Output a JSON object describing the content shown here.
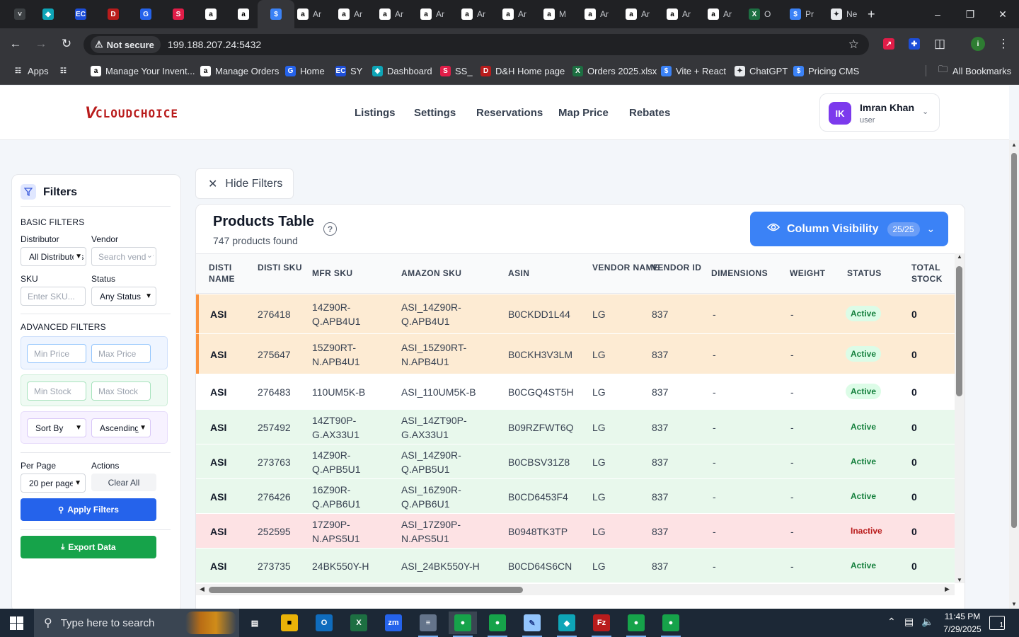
{
  "browser": {
    "tabs": [
      {
        "icon": "chevron-down-icon",
        "title": ""
      },
      {
        "icon": "diamond-icon",
        "title": ""
      },
      {
        "icon": "ec-icon",
        "title": ""
      },
      {
        "icon": "dh-icon",
        "title": ""
      },
      {
        "icon": "google-maps-icon",
        "title": ""
      },
      {
        "icon": "layers-icon",
        "title": ""
      },
      {
        "icon": "amazon-icon",
        "title": ""
      },
      {
        "icon": "amazon-icon",
        "title": ""
      },
      {
        "icon": "dollar-icon",
        "title": ""
      },
      {
        "icon": "amazon-icon",
        "title": "Ar"
      },
      {
        "icon": "amazon-icon",
        "title": "Ar"
      },
      {
        "icon": "amazon-icon",
        "title": "Ar"
      },
      {
        "icon": "amazon-icon",
        "title": "Ar"
      },
      {
        "icon": "amazon-circle-icon",
        "title": "Ar"
      },
      {
        "icon": "amazon-circle-icon",
        "title": "Ar"
      },
      {
        "icon": "amazon-icon",
        "title": "M"
      },
      {
        "icon": "amazon-circle-icon",
        "title": "Ar"
      },
      {
        "icon": "amazon-circle-icon",
        "title": "Ar"
      },
      {
        "icon": "amazon-circle-icon",
        "title": "Ar"
      },
      {
        "icon": "amazon-circle-icon",
        "title": "Ar"
      },
      {
        "icon": "excel-icon",
        "title": "O"
      },
      {
        "icon": "dollar-icon",
        "title": "Pr"
      },
      {
        "icon": "chatgpt-icon",
        "title": "Ne"
      }
    ],
    "new_tab": "+",
    "address": {
      "security_label": "Not secure",
      "url": "199.188.207.24:5432"
    },
    "bookmarks": [
      {
        "icon": "apps-icon",
        "label": "Apps"
      },
      {
        "icon": "grid-icon",
        "label": ""
      },
      {
        "icon": "amazon-icon",
        "label": "Manage Your Invent..."
      },
      {
        "icon": "amazon-icon",
        "label": "Manage Orders"
      },
      {
        "icon": "google-maps-icon",
        "label": "Home"
      },
      {
        "icon": "ec-icon",
        "label": "SY"
      },
      {
        "icon": "diamond-icon",
        "label": "Dashboard"
      },
      {
        "icon": "layers-icon",
        "label": "SS_"
      },
      {
        "icon": "dh-icon",
        "label": "D&H Home page"
      },
      {
        "icon": "excel-icon",
        "label": "Orders 2025.xlsx"
      },
      {
        "icon": "dollar-icon",
        "label": "Vite + React"
      },
      {
        "icon": "chatgpt-icon",
        "label": "ChatGPT"
      },
      {
        "icon": "dollar-icon",
        "label": "Pricing CMS"
      }
    ],
    "all_bookmarks": "All Bookmarks"
  },
  "app": {
    "logo": {
      "mark": "V",
      "text": "CLOUDCHOICE"
    },
    "nav": [
      "Listings",
      "Settings",
      "Reservations",
      "Map Price",
      "Rebates"
    ],
    "user": {
      "initials": "IK",
      "name": "Imran Khan",
      "role": "user"
    }
  },
  "filters": {
    "title": "Filters",
    "basic_title": "BASIC FILTERS",
    "distributor_label": "Distributor",
    "distributor_value": "All Distributors",
    "vendor_label": "Vendor",
    "vendor_placeholder": "Search vendor",
    "sku_label": "SKU",
    "sku_placeholder": "Enter SKU...",
    "status_label": "Status",
    "status_value": "Any Status",
    "advanced_title": "ADVANCED FILTERS",
    "min_price_placeholder": "Min Price",
    "max_price_placeholder": "Max Price",
    "min_stock_placeholder": "Min Stock",
    "max_stock_placeholder": "Max Stock",
    "sort_by_value": "Sort By",
    "sort_order_value": "Ascending",
    "per_page_label": "Per Page",
    "per_page_value": "20 per page",
    "actions_label": "Actions",
    "clear_all": "Clear All",
    "apply": "Apply Filters",
    "export": "Export Data"
  },
  "hide_filters": "Hide Filters",
  "products": {
    "title": "Products Table",
    "count_text": "747 products found",
    "column_visibility": {
      "label": "Column Visibility",
      "badge": "25/25"
    },
    "columns": [
      "DISTI NAME",
      "DISTI SKU",
      "MFR SKU",
      "AMAZON SKU",
      "ASIN",
      "VENDOR NAME",
      "VENDOR ID",
      "DIMENSIONS",
      "WEIGHT",
      "STATUS",
      "TOTAL STOCK"
    ],
    "rows": [
      {
        "disti": "ASI",
        "disti_sku": "276418",
        "mfr_sku": [
          "14Z90R-",
          "Q.APB4U1"
        ],
        "amazon_sku": [
          "ASI_14Z90R-",
          "Q.APB4U1"
        ],
        "asin": "B0CKDD1L44",
        "vendor": "LG",
        "vendor_id": "837",
        "dimensions": "-",
        "weight": "-",
        "status": "Active",
        "stock": "0",
        "tint": "orange",
        "pill": true
      },
      {
        "disti": "ASI",
        "disti_sku": "275647",
        "mfr_sku": [
          "15Z90RT-",
          "N.APB4U1"
        ],
        "amazon_sku": [
          "ASI_15Z90RT-",
          "N.APB4U1"
        ],
        "asin": "B0CKH3V3LM",
        "vendor": "LG",
        "vendor_id": "837",
        "dimensions": "-",
        "weight": "-",
        "status": "Active",
        "stock": "0",
        "tint": "orange",
        "pill": true
      },
      {
        "disti": "ASI",
        "disti_sku": "276483",
        "mfr_sku": [
          "110UM5K-B"
        ],
        "amazon_sku": [
          "ASI_110UM5K-B"
        ],
        "asin": "B0CGQ4ST5H",
        "vendor": "LG",
        "vendor_id": "837",
        "dimensions": "-",
        "weight": "-",
        "status": "Active",
        "stock": "0",
        "tint": "white",
        "pill": true
      },
      {
        "disti": "ASI",
        "disti_sku": "257492",
        "mfr_sku": [
          "14ZT90P-",
          "G.AX33U1"
        ],
        "amazon_sku": [
          "ASI_14ZT90P-",
          "G.AX33U1"
        ],
        "asin": "B09RZFWT6Q",
        "vendor": "LG",
        "vendor_id": "837",
        "dimensions": "-",
        "weight": "-",
        "status": "Active",
        "stock": "0",
        "tint": "green",
        "pill": false
      },
      {
        "disti": "ASI",
        "disti_sku": "273763",
        "mfr_sku": [
          "14Z90R-",
          "Q.APB5U1"
        ],
        "amazon_sku": [
          "ASI_14Z90R-",
          "Q.APB5U1"
        ],
        "asin": "B0CBSV31Z8",
        "vendor": "LG",
        "vendor_id": "837",
        "dimensions": "-",
        "weight": "-",
        "status": "Active",
        "stock": "0",
        "tint": "green",
        "pill": false
      },
      {
        "disti": "ASI",
        "disti_sku": "276426",
        "mfr_sku": [
          "16Z90R-",
          "Q.APB6U1"
        ],
        "amazon_sku": [
          "ASI_16Z90R-",
          "Q.APB6U1"
        ],
        "asin": "B0CD6453F4",
        "vendor": "LG",
        "vendor_id": "837",
        "dimensions": "-",
        "weight": "-",
        "status": "Active",
        "stock": "0",
        "tint": "green",
        "pill": false
      },
      {
        "disti": "ASI",
        "disti_sku": "252595",
        "mfr_sku": [
          "17Z90P-",
          "N.APS5U1"
        ],
        "amazon_sku": [
          "ASI_17Z90P-",
          "N.APS5U1"
        ],
        "asin": "B0948TK3TP",
        "vendor": "LG",
        "vendor_id": "837",
        "dimensions": "-",
        "weight": "-",
        "status": "Inactive",
        "stock": "0",
        "tint": "red",
        "pill": false
      },
      {
        "disti": "ASI",
        "disti_sku": "273735",
        "mfr_sku": [
          "24BK550Y-H"
        ],
        "amazon_sku": [
          "ASI_24BK550Y-H"
        ],
        "asin": "B0CD64S6CN",
        "vendor": "LG",
        "vendor_id": "837",
        "dimensions": "-",
        "weight": "-",
        "status": "Active",
        "stock": "0",
        "tint": "green",
        "pill": false
      }
    ]
  },
  "taskbar": {
    "search_placeholder": "Type here to search",
    "apps": [
      "task-view-icon",
      "file-explorer-icon",
      "outlook-icon",
      "excel-icon",
      "zoom-icon",
      "calculator-icon",
      "chrome-icon",
      "chrome-icon",
      "notepad-icon",
      "diamond-icon",
      "filezilla-icon",
      "chrome-icon",
      "chrome-icon"
    ],
    "time": "11:45 PM",
    "date": "7/29/2025",
    "notification_count": "1"
  },
  "colors": {
    "brand_red": "#b91c1c",
    "primary_blue": "#3b82f6",
    "apply_blue": "#2563eb",
    "export_green": "#16a34a",
    "row_orange": "#fdebd3",
    "row_green": "#e8f8ec",
    "row_red": "#fde2e4",
    "active_text": "#15803d",
    "inactive_text": "#b91c1c"
  }
}
